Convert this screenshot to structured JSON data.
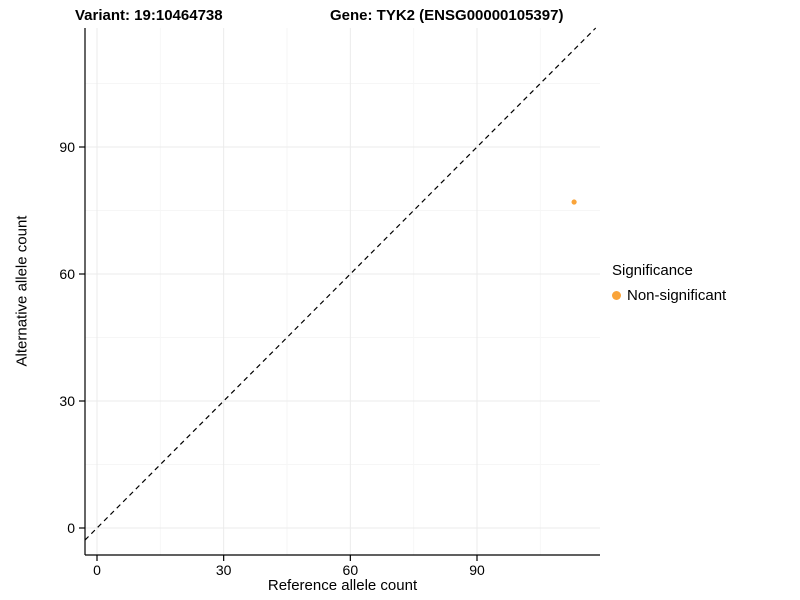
{
  "chart_data": {
    "type": "scatter",
    "title_left": "Variant: 19:10464738",
    "title_right": "Gene: TYK2 (ENSG00000105397)",
    "xlabel": "Reference allele count",
    "ylabel": "Alternative allele count",
    "xlim": [
      -3,
      119
    ],
    "ylim": [
      -6,
      118
    ],
    "xticks": [
      0,
      30,
      60,
      90
    ],
    "yticks": [
      0,
      30,
      60,
      90
    ],
    "grid": true,
    "identity_line": {
      "style": "dashed",
      "color": "#000000",
      "equation": "y = x"
    },
    "series": [
      {
        "name": "Non-significant",
        "color": "#FAA43A",
        "points": [
          {
            "x": 113,
            "y": 77
          }
        ]
      }
    ],
    "legend": {
      "title": "Significance",
      "position": "right",
      "entries": [
        {
          "label": "Non-significant",
          "color": "#FAA43A"
        }
      ]
    },
    "colors": {
      "major_grid": "#ebebeb",
      "minor_grid": "#f6f6f6",
      "axis": "#000000",
      "background": "#ffffff"
    }
  }
}
